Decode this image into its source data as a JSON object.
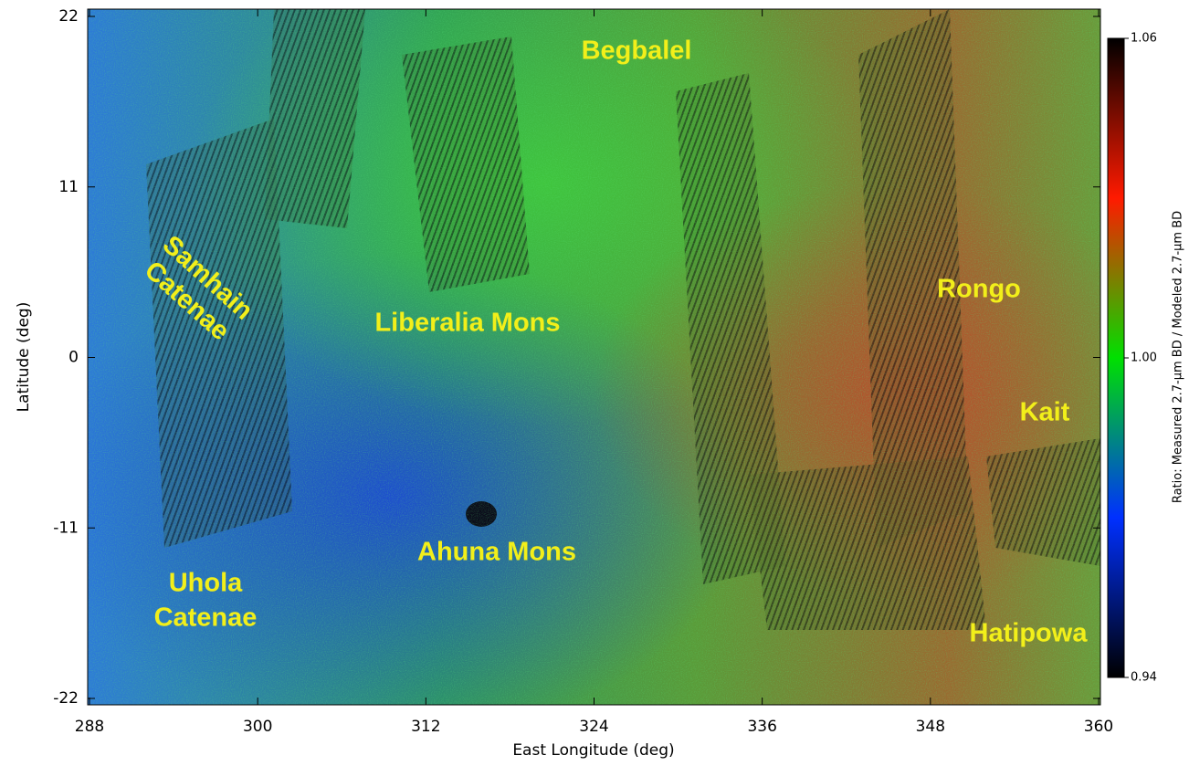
{
  "map": {
    "xlabel": "East Longitude (deg)",
    "ylabel": "Latitude (deg)",
    "xlim": [
      288,
      360
    ],
    "ylim": [
      -22,
      22
    ],
    "xticks": [
      288,
      300,
      312,
      324,
      336,
      348,
      360
    ],
    "yticks": [
      -22,
      -11,
      0,
      11,
      22
    ],
    "places": [
      [
        "Begbalel"
      ],
      [
        "Samhain",
        "Catenae"
      ],
      [
        "Liberalia Mons"
      ],
      [
        "Rongo"
      ],
      [
        "Kait"
      ],
      [
        "Ahuna Mons"
      ],
      [
        "Uhola",
        "Catenae"
      ],
      [
        "Hatipowa"
      ]
    ],
    "colorbar": {
      "label": "Ratio: Measured 2.7-μm BD / Modeled 2.7-μm BD",
      "lim": [
        0.94,
        1.06
      ],
      "ticks": [
        0.94,
        {
          "value": 1,
          "label": "1.00"
        },
        1.06
      ]
    }
  }
}
